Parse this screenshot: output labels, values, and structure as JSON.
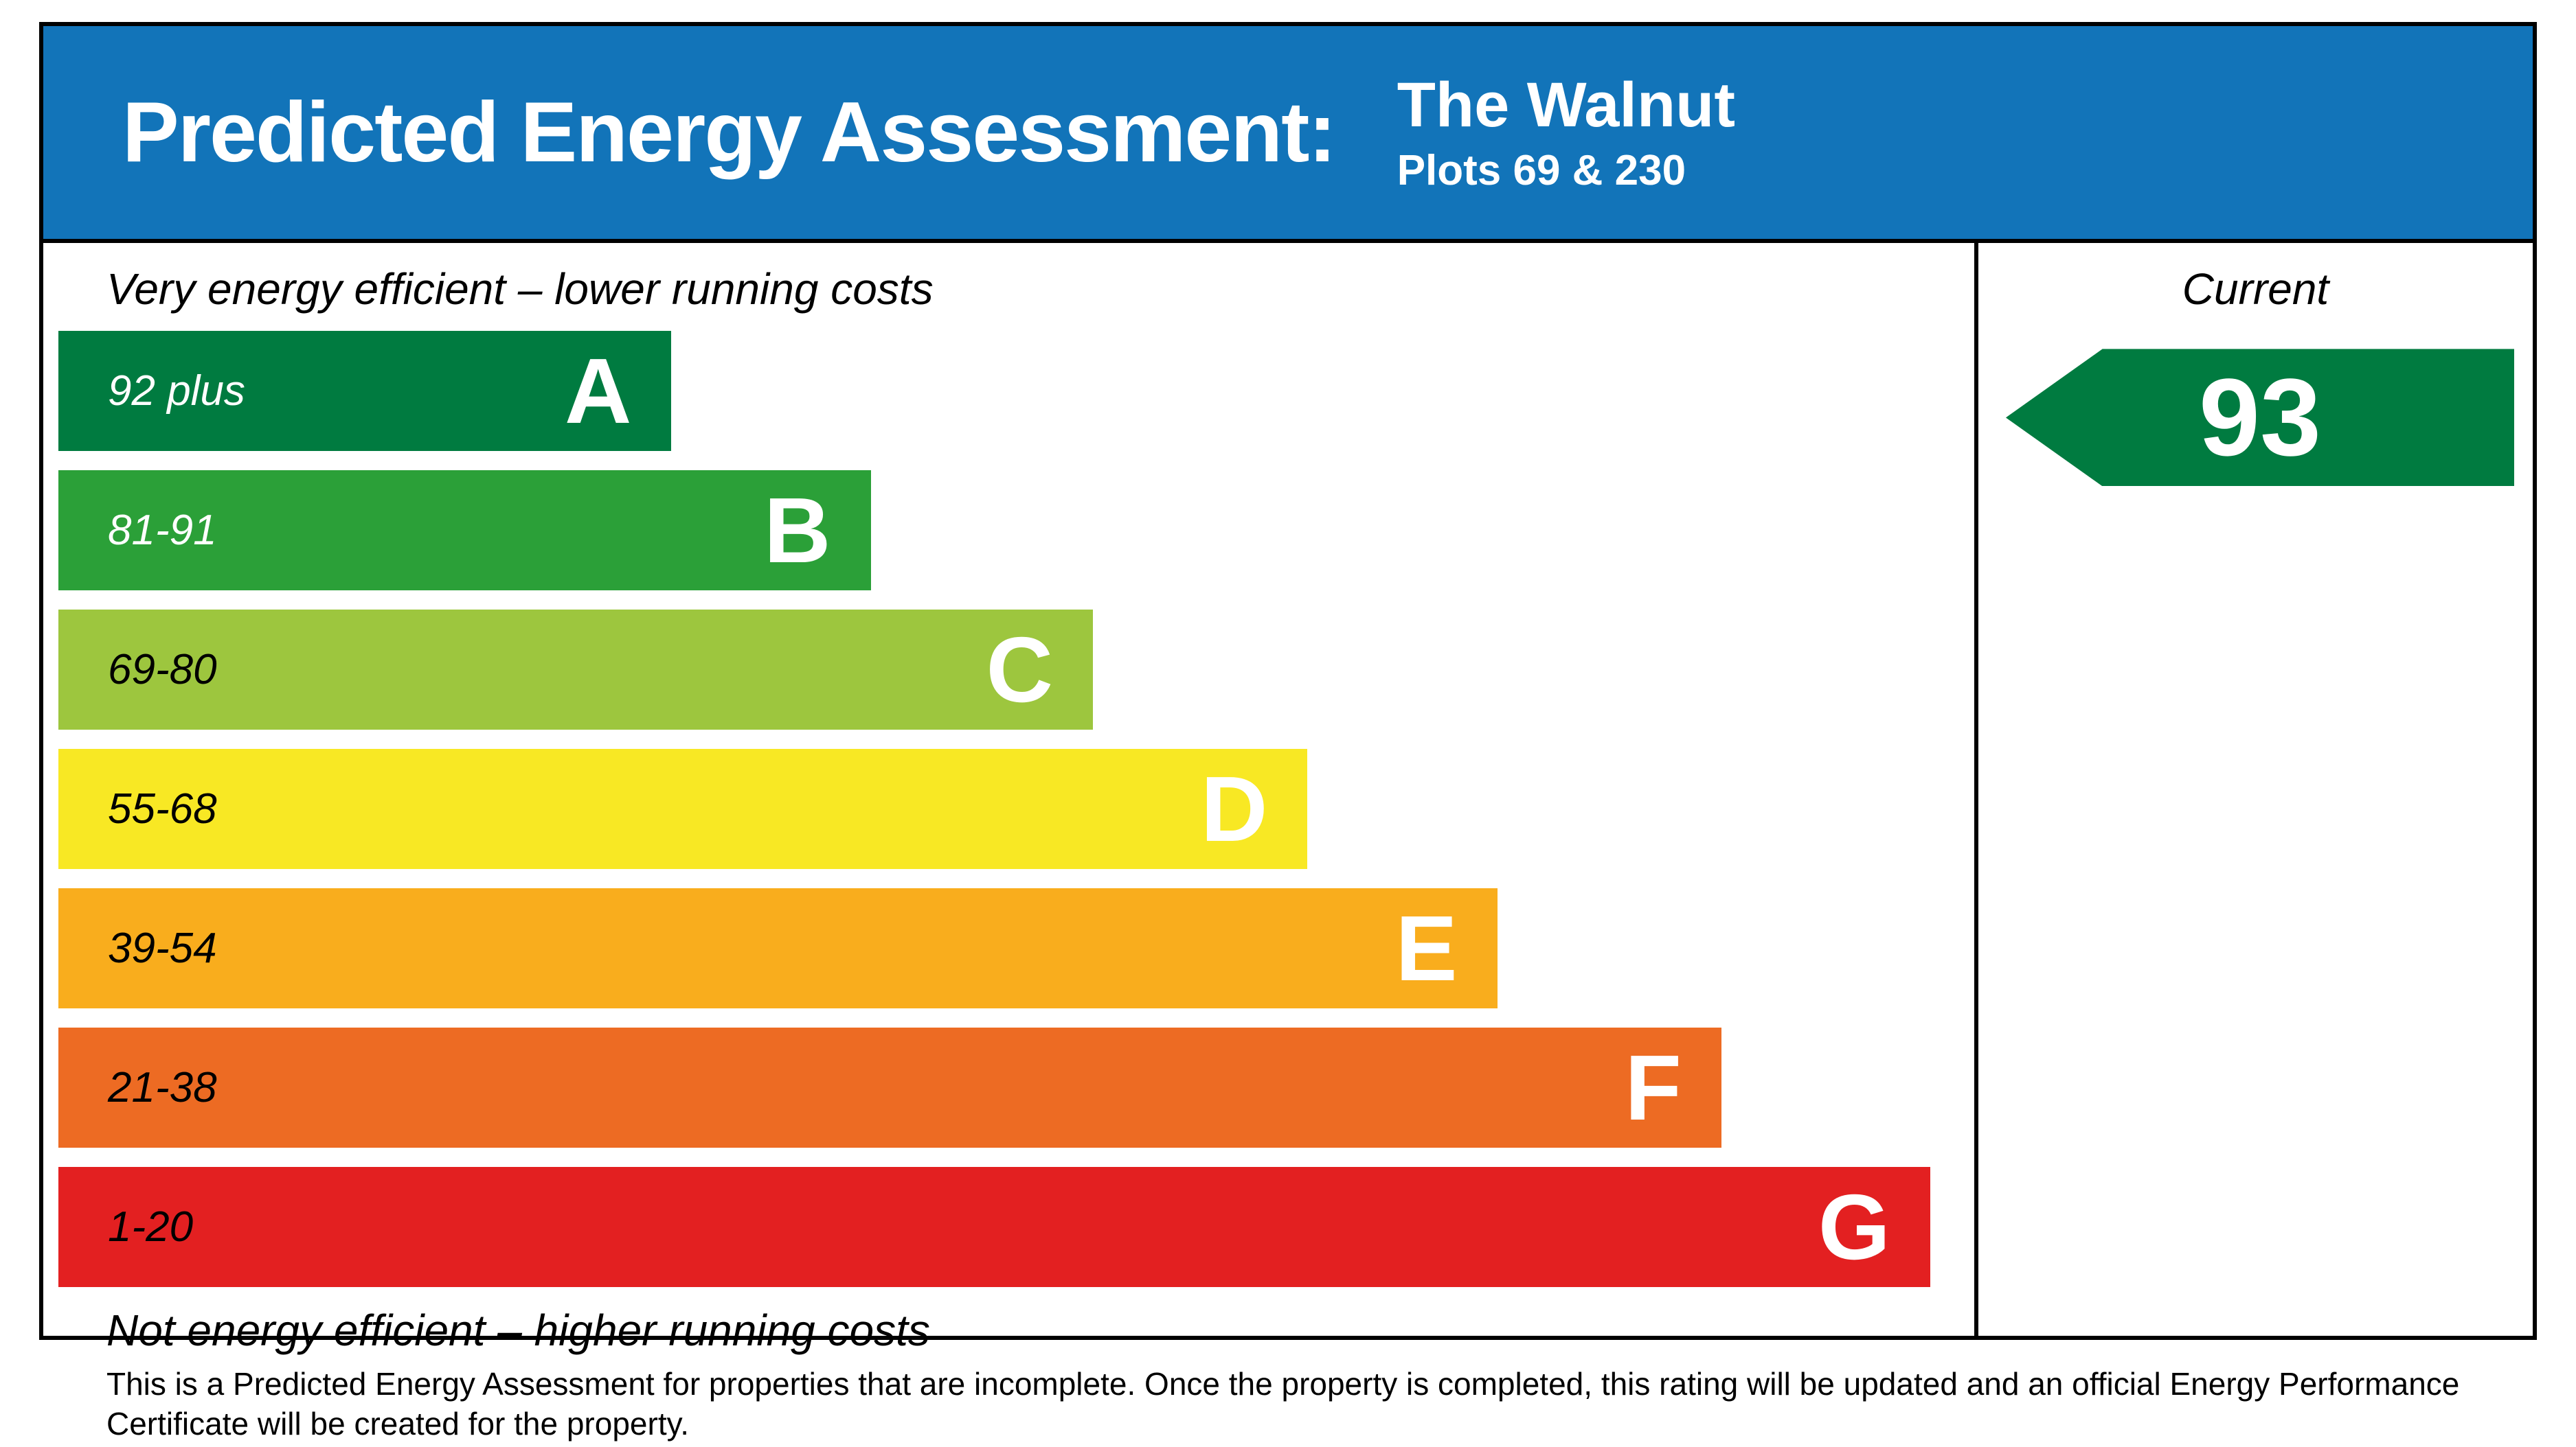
{
  "header": {
    "title": "Predicted Energy Assessment:",
    "property_name": "The Walnut",
    "property_plots": "Plots 69 & 230"
  },
  "chart": {
    "top_caption": "Very energy efficient – lower running costs",
    "bottom_caption": "Not energy efficient – higher running costs",
    "current_label": "Current",
    "current_rating": "93",
    "arrow_color": "#007B40",
    "bands": [
      {
        "letter": "A",
        "range": "92 plus",
        "color": "#007B40",
        "range_color": "#FFFFFF",
        "width_pct": 32.0
      },
      {
        "letter": "B",
        "range": "81-91",
        "color": "#2BA038",
        "range_color": "#FFFFFF",
        "width_pct": 42.4
      },
      {
        "letter": "C",
        "range": "69-80",
        "color": "#9DC63E",
        "range_color": "#000000",
        "width_pct": 54.0
      },
      {
        "letter": "D",
        "range": "55-68",
        "color": "#F8E824",
        "range_color": "#000000",
        "width_pct": 65.2
      },
      {
        "letter": "E",
        "range": "39-54",
        "color": "#F9AD1D",
        "range_color": "#000000",
        "width_pct": 75.1
      },
      {
        "letter": "F",
        "range": "21-38",
        "color": "#ED6B23",
        "range_color": "#000000",
        "width_pct": 86.8
      },
      {
        "letter": "G",
        "range": "1-20",
        "color": "#E32021",
        "range_color": "#000000",
        "width_pct": 97.7
      }
    ]
  },
  "colors": {
    "header_bg": "#1274B9",
    "border": "#000000"
  },
  "footer": {
    "note": "This is a Predicted Energy Assessment for properties that are incomplete. Once the property is completed, this rating will be updated and an official Energy Performance Certificate will be created for the property."
  },
  "chart_data": {
    "type": "bar",
    "title": "Predicted Energy Assessment: The Walnut, Plots 69 & 230",
    "categories": [
      "A",
      "B",
      "C",
      "D",
      "E",
      "F",
      "G"
    ],
    "ranges": [
      "92 plus",
      "81-91",
      "69-80",
      "55-68",
      "39-54",
      "21-38",
      "1-20"
    ],
    "relative_bar_widths_pct": [
      32.0,
      42.4,
      54.0,
      65.2,
      75.1,
      86.8,
      97.7
    ],
    "bar_colors": [
      "#007B40",
      "#2BA038",
      "#9DC63E",
      "#F8E824",
      "#F9AD1D",
      "#ED6B23",
      "#E32021"
    ],
    "current_rating": 93,
    "current_rating_band": "A",
    "legend_position": "right column",
    "annotations": [
      "Very energy efficient – lower running costs",
      "Not energy efficient – higher running costs",
      "Current"
    ]
  }
}
